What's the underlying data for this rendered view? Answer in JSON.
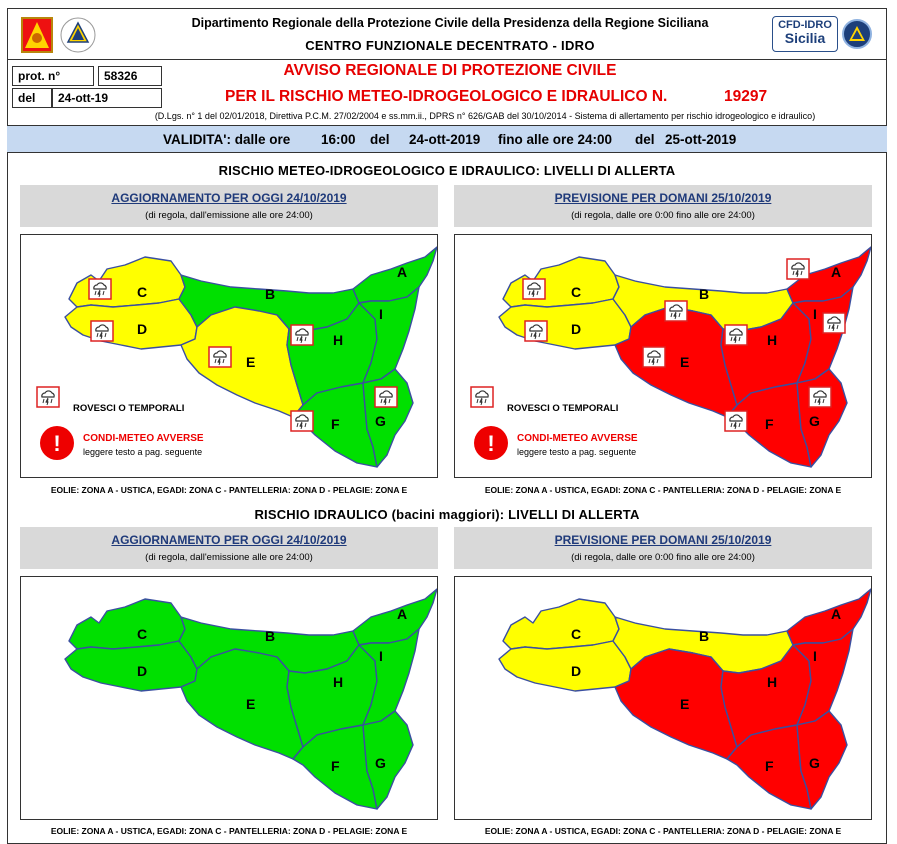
{
  "header": {
    "department": "Dipartimento Regionale della Protezione Civile della Presidenza della Regione Siciliana",
    "centre": "CENTRO FUNZIONALE DECENTRATO - IDRO",
    "logo_cfd_line1": "CFD-IDRO",
    "logo_cfd_line2": "Sicilia"
  },
  "protocol": {
    "prot_label": "prot. n°",
    "prot_value": "58326",
    "date_label": "del",
    "date_value": "24-ott-19"
  },
  "notice": {
    "title_line1": "AVVISO REGIONALE DI PROTEZIONE CIVILE",
    "title_line2": "PER IL RISCHIO METEO-IDROGEOLOGICO E IDRAULICO N.",
    "number": "19297",
    "legal_refs": "(D.Lgs. n° 1 del 02/01/2018, Direttiva P.C.M. 27/02/2004 e ss.mm.ii., DPRS n° 626/GAB del 30/10/2014 - Sistema di allertamento per rischio idrogeologico e idraulico)"
  },
  "validity": {
    "label": "VALIDITA': dalle ore",
    "start_time": "16:00",
    "del1": "del",
    "start_date": "24-ott-2019",
    "until": "fino alle ore 24:00",
    "del2": "del",
    "end_date": "25-ott-2019"
  },
  "section1_title": "RISCHIO METEO-IDROGEOLOGICO E IDRAULICO: LIVELLI DI ALLERTA",
  "section2_title": "RISCHIO IDRAULICO (bacini maggiori): LIVELLI DI ALLERTA",
  "panel_today": {
    "title": "AGGIORNAMENTO PER OGGI 24/10/2019",
    "subtitle": "(di regola, dall'emissione alle ore 24:00)"
  },
  "panel_tomorrow": {
    "title": "PREVISIONE PER DOMANI 25/10/2019",
    "subtitle": "(di regola, dalle ore 0:00 fino alle ore 24:00)"
  },
  "legend": {
    "showers": "ROVESCI O TEMPORALI",
    "adverse": "CONDI-METEO AVVERSE",
    "see_text": "leggere testo a pag. seguente"
  },
  "islands_note": "EOLIE: ZONA A - USTICA, EGADI: ZONA C - PANTELLERIA: ZONA D - PELAGIE: ZONA E",
  "zones": [
    "A",
    "B",
    "C",
    "D",
    "E",
    "F",
    "G",
    "H",
    "I"
  ],
  "colors": {
    "green": "#00e000",
    "yellow": "#ffff00",
    "red": "#ff0000",
    "blue_border": "#3a4fa0"
  },
  "maps": {
    "meteo_today": {
      "A": "green",
      "B": "green",
      "C": "yellow",
      "D": "yellow",
      "E": "yellow",
      "F": "green",
      "G": "green",
      "H": "green",
      "I": "green"
    },
    "meteo_tomorrow": {
      "A": "red",
      "B": "yellow",
      "C": "yellow",
      "D": "yellow",
      "E": "red",
      "F": "red",
      "G": "red",
      "H": "red",
      "I": "red"
    },
    "hydro_today": {
      "A": "green",
      "B": "green",
      "C": "green",
      "D": "green",
      "E": "green",
      "F": "green",
      "G": "green",
      "H": "green",
      "I": "green"
    },
    "hydro_tomorrow": {
      "A": "red",
      "B": "yellow",
      "C": "yellow",
      "D": "yellow",
      "E": "red",
      "F": "red",
      "G": "red",
      "H": "red",
      "I": "red"
    }
  },
  "storm_icons": {
    "meteo_today": [
      "C",
      "D",
      "E",
      "H",
      "G",
      "F"
    ],
    "meteo_tomorrow": [
      "C",
      "D",
      "B",
      "E",
      "H",
      "A",
      "I",
      "G",
      "F"
    ]
  },
  "icons": {
    "storm": "storm-cloud-icon",
    "alert": "exclamation-icon",
    "region": "sicily-coat-of-arms-icon",
    "civil": "protezione-civile-logo-icon"
  }
}
